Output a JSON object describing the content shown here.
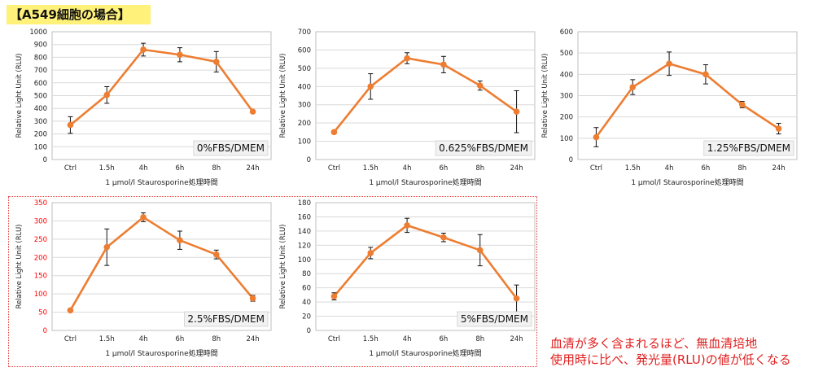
{
  "header": {
    "title": "【A549細胞の場合】"
  },
  "note": {
    "line1": "血清が多く含まれるほど、無血清培地",
    "line2": "使用時に比べ、発光量(RLU)の値が低くなる"
  },
  "colors": {
    "series": "#ed7d31",
    "error_bar": "#111111",
    "highlight_axis": "#ff0000",
    "highlight_border": "#e53a3a",
    "badge": "#fff17a"
  },
  "chart_data": [
    {
      "type": "line",
      "categories": [
        "Ctrl",
        "1.5h",
        "4h",
        "6h",
        "8h",
        "24h"
      ],
      "values": [
        270,
        505,
        860,
        820,
        765,
        375
      ],
      "errors": [
        65,
        65,
        50,
        55,
        80,
        10
      ],
      "label": "0%FBS/DMEM",
      "xlabel": "1 μmol/l Staurosporine処理時間",
      "ylabel": "Relative Light Unit (RLU)",
      "ylim": [
        0,
        1000
      ],
      "ystep": 100,
      "grid": true,
      "highlight": false
    },
    {
      "type": "line",
      "categories": [
        "Ctrl",
        "1.5h",
        "4h",
        "6h",
        "8h",
        "24h"
      ],
      "values": [
        150,
        400,
        555,
        520,
        405,
        262
      ],
      "errors": [
        5,
        70,
        30,
        45,
        25,
        115
      ],
      "label": "0.625%FBS/DMEM",
      "xlabel": "1 μmol/l Staurosporine処理時間",
      "ylabel": "Relative Light Unit (RLU)",
      "ylim": [
        0,
        700
      ],
      "ystep": 100,
      "grid": true,
      "highlight": false
    },
    {
      "type": "line",
      "categories": [
        "Ctrl",
        "1.5h",
        "4h",
        "6h",
        "8h",
        "24h"
      ],
      "values": [
        105,
        340,
        450,
        400,
        258,
        145
      ],
      "errors": [
        45,
        35,
        55,
        45,
        15,
        25
      ],
      "label": "1.25%FBS/DMEM",
      "xlabel": "1 μmol/l Staurosporine処理時間",
      "ylabel": "Relative Light Unit (RLU)",
      "ylim": [
        0,
        600
      ],
      "ystep": 100,
      "grid": true,
      "highlight": false
    },
    {
      "type": "line",
      "categories": [
        "Ctrl",
        "1.5h",
        "4h",
        "6h",
        "8h",
        "24h"
      ],
      "values": [
        55,
        228,
        310,
        247,
        208,
        88
      ],
      "errors": [
        3,
        50,
        12,
        25,
        12,
        8
      ],
      "label": "2.5%FBS/DMEM",
      "xlabel": "1 μmol/l Staurosporine処理時間",
      "ylabel": "Relative Light Unit (RLU)",
      "ylim": [
        0,
        350
      ],
      "ystep": 50,
      "grid": true,
      "highlight": true
    },
    {
      "type": "line",
      "categories": [
        "Ctrl",
        "1.5h",
        "4h",
        "6h",
        "8h",
        "24h"
      ],
      "values": [
        48,
        109,
        148,
        131,
        113,
        45
      ],
      "errors": [
        5,
        8,
        10,
        6,
        22,
        19
      ],
      "label": "5%FBS/DMEM",
      "xlabel": "1 μmol/l Staurosporine処理時間",
      "ylabel": "Relative Light Unit (RLU)",
      "ylim": [
        0,
        180
      ],
      "ystep": 20,
      "grid": true,
      "highlight": false
    }
  ]
}
